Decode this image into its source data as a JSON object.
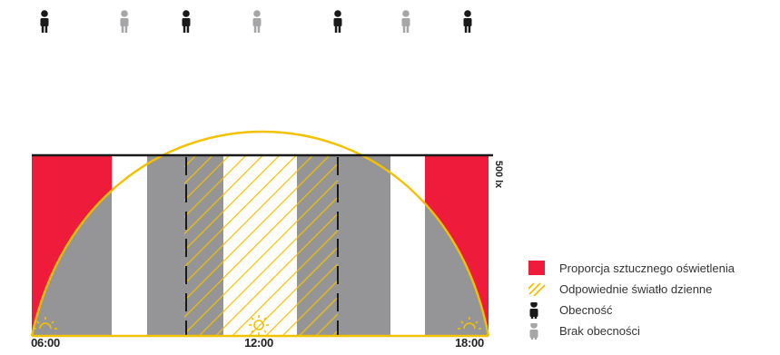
{
  "colors": {
    "artificial": "#ee1c3a",
    "occupied_gray": "#959597",
    "daylight": "#f2c100",
    "present": "#1a1a1a",
    "absent": "#a6a6a8",
    "background": "#ffffff"
  },
  "occupancy": [
    "present",
    "absent",
    "present",
    "absent",
    "present",
    "absent",
    "present"
  ],
  "timeline": {
    "labels": [
      "06:00",
      "12:00",
      "18:00"
    ],
    "threshold_label": "500 lx"
  },
  "icons": [
    "sunrise-icon",
    "sun-icon",
    "sunset-icon",
    "person-present-icon",
    "person-absent-icon"
  ],
  "legend": [
    {
      "key": "artificial",
      "label": "Proporcja sztucznego oświetlenia"
    },
    {
      "key": "daylight",
      "label": "Odpowiednie światło dzienne"
    },
    {
      "key": "present",
      "label": "Obecność"
    },
    {
      "key": "absent",
      "label": "Brak obecności"
    }
  ]
}
